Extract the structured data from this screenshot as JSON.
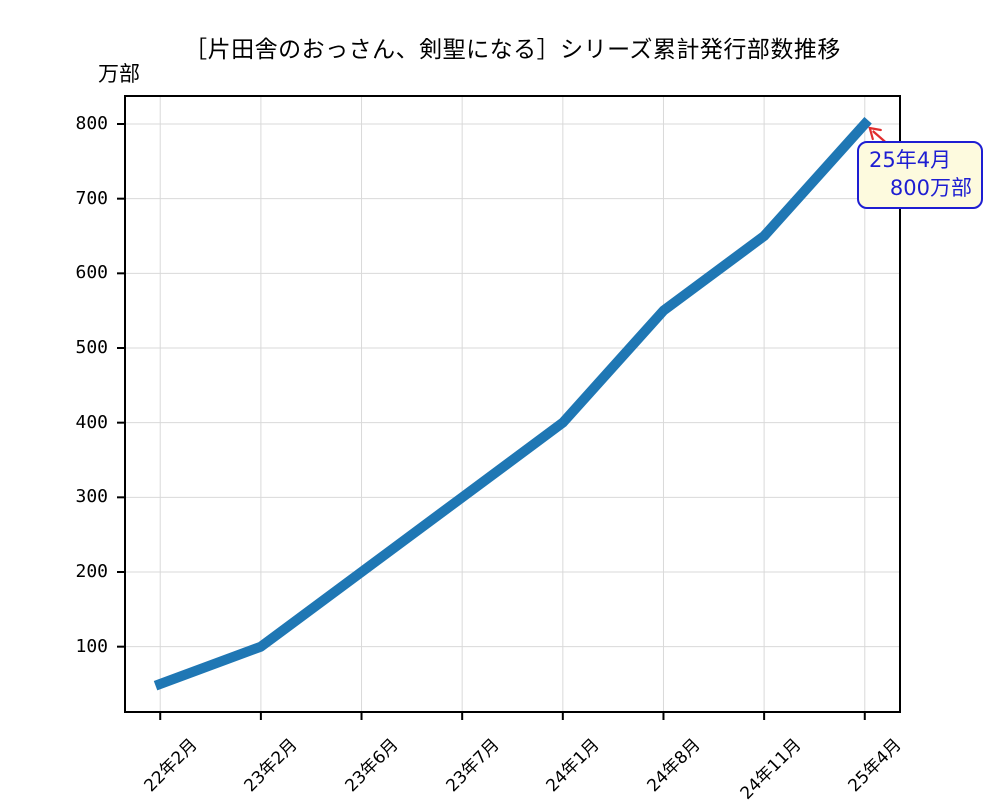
{
  "title": "［片田舎のおっさん、剣聖になる］シリーズ累計発行部数推移",
  "y_axis_unit": "万部",
  "annotation": {
    "line1": "25年4月",
    "line2": "800万部"
  },
  "colors": {
    "line": "#1f77b4",
    "grid": "#d9d9d9",
    "axis": "#000000",
    "annotation_text": "#1e1ed2",
    "annotation_border": "#1e1ed2",
    "annotation_bg": "#fdfade",
    "arrow": "#e12d2d"
  },
  "chart_data": {
    "type": "line",
    "categories": [
      "22年2月",
      "23年2月",
      "23年6月",
      "23年7月",
      "24年1月",
      "24年8月",
      "24年11月",
      "25年4月"
    ],
    "values": [
      50,
      100,
      200,
      300,
      400,
      550,
      650,
      800
    ],
    "series": [
      {
        "name": "シリーズ累計発行部数",
        "values": [
          50,
          100,
          200,
          300,
          400,
          550,
          650,
          800
        ]
      }
    ],
    "title": "［片田舎のおっさん、剣聖になる］シリーズ累計発行部数推移",
    "xlabel": "",
    "ylabel": "万部",
    "yticks": [
      100,
      200,
      300,
      400,
      500,
      600,
      700,
      800
    ],
    "ylim": [
      12.5,
      837.5
    ],
    "grid": true,
    "legend": "none",
    "line_color": "#1f77b4",
    "line_width": 10,
    "annotation": {
      "label": "25年4月\n800万部",
      "x": "25年4月",
      "y": 800
    }
  }
}
